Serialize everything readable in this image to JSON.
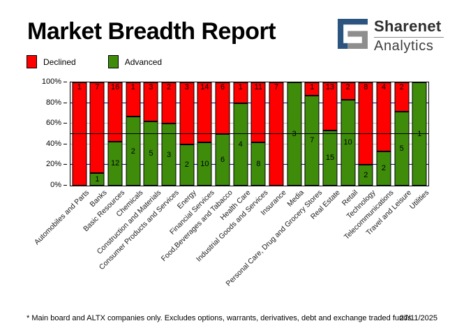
{
  "header": {
    "title": "Market Breadth Report"
  },
  "logo": {
    "name": "Sharenet",
    "sub": "Analytics",
    "blue": "#2b5580",
    "gray": "#8e8e8e"
  },
  "legend": [
    {
      "label": "Declined",
      "color": "#ff0000"
    },
    {
      "label": "Advanced",
      "color": "#3e8c0a"
    }
  ],
  "chart_data": {
    "type": "bar",
    "variant": "100%-stacked-column",
    "title": "Market Breadth Report",
    "categories": [
      "Automobiles and Parts",
      "Banks",
      "Basic Resources",
      "Chemicals",
      "Construction and Materials",
      "Consumer Products and Services",
      "Energy",
      "Financial Services",
      "Food,Beverages and Tabacco",
      "Health Care",
      "Industrial Goods and Services",
      "Insurance",
      "Media",
      "Personal Care, Drug and Grocery Stores",
      "Real Estate",
      "Retail",
      "Technology",
      "Telecommunications",
      "Travel and Leisure",
      "Utilities"
    ],
    "series": [
      {
        "name": "Declined",
        "color": "#ff0000",
        "values": [
          1,
          7,
          16,
          1,
          3,
          2,
          3,
          14,
          6,
          1,
          11,
          7,
          0,
          1,
          13,
          2,
          8,
          4,
          2,
          0
        ]
      },
      {
        "name": "Advanced",
        "color": "#3e8c0a",
        "values": [
          0,
          1,
          12,
          2,
          5,
          3,
          2,
          10,
          6,
          4,
          8,
          0,
          3,
          7,
          15,
          10,
          2,
          2,
          5,
          1
        ]
      }
    ],
    "y_ticks": [
      "100%",
      "80%",
      "60%",
      "40%",
      "20%",
      "0%"
    ],
    "ylim": [
      0,
      100
    ],
    "grid": {
      "navy_lines_pct": [
        20,
        80
      ],
      "gray_lines_pct": [
        40,
        60
      ],
      "solid_black_line_pct": 50,
      "navy_color": "#000080",
      "gray_color": "#b9b9b9"
    },
    "legend_position": "top-left",
    "value_labels": "count shown inside each segment; hidden when 0"
  },
  "footer": {
    "note": "* Main board and ALTX companies only. Excludes options, warrants, derivatives, debt and exchange traded funds",
    "date": "27/11/2025"
  }
}
